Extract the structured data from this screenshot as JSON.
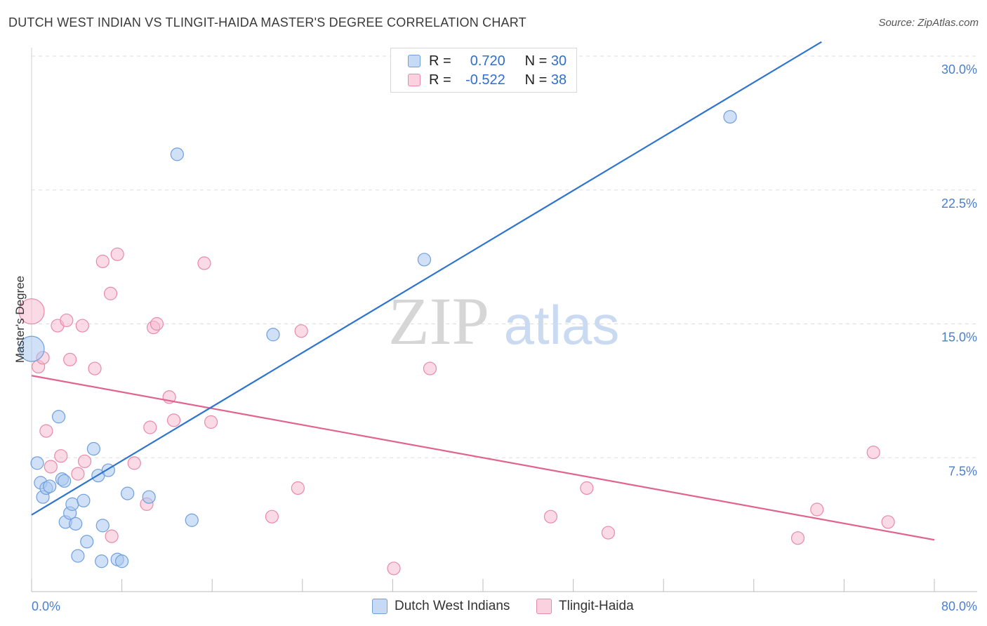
{
  "title": "DUTCH WEST INDIAN VS TLINGIT-HAIDA MASTER'S DEGREE CORRELATION CHART",
  "source": "Source: ZipAtlas.com",
  "watermark": {
    "part1": "ZIP",
    "part2": "atlas"
  },
  "colors": {
    "blue_fill": "#a9c8f0",
    "blue_stroke": "#6f9fdc",
    "blue_line": "#2e74d0",
    "pink_fill": "#f6bccd",
    "pink_stroke": "#e98aa8",
    "pink_line": "#e0648f",
    "grid": "#dddddd",
    "tick_text": "#4a7fcf"
  },
  "legend": {
    "rows": [
      {
        "r_label": "R =",
        "r_value": "0.720",
        "n_label": "N =",
        "n_value": "30"
      },
      {
        "r_label": "R =",
        "r_value": "-0.522",
        "n_label": "N =",
        "n_value": "38"
      }
    ]
  },
  "chart_data": {
    "type": "scatter",
    "title": "DUTCH WEST INDIAN VS TLINGIT-HAIDA MASTER'S DEGREE CORRELATION CHART",
    "xlabel": "",
    "ylabel": "Master's Degree",
    "xlim": [
      0,
      80
    ],
    "ylim": [
      0,
      30
    ],
    "x_tick_labels": [
      "0.0%",
      "80.0%"
    ],
    "y_ticks": [
      7.5,
      15.0,
      22.5,
      30.0
    ],
    "y_tick_labels": [
      "7.5%",
      "15.0%",
      "22.5%",
      "30.0%"
    ],
    "grid": true,
    "legend_position": "top-center",
    "series": [
      {
        "name": "Dutch West Indians",
        "color": "#a9c8f0",
        "r": "0.720",
        "n": "30",
        "points": [
          [
            0.0,
            13.6
          ],
          [
            0.5,
            7.2
          ],
          [
            0.8,
            6.1
          ],
          [
            1.0,
            5.3
          ],
          [
            1.3,
            5.8
          ],
          [
            1.6,
            5.9
          ],
          [
            2.4,
            9.8
          ],
          [
            2.7,
            6.3
          ],
          [
            2.9,
            6.2
          ],
          [
            3.0,
            3.9
          ],
          [
            3.4,
            4.4
          ],
          [
            3.6,
            4.9
          ],
          [
            3.9,
            3.8
          ],
          [
            4.1,
            2.0
          ],
          [
            4.6,
            5.1
          ],
          [
            4.9,
            2.8
          ],
          [
            5.5,
            8.0
          ],
          [
            5.9,
            6.5
          ],
          [
            6.2,
            1.7
          ],
          [
            6.3,
            3.7
          ],
          [
            6.8,
            6.8
          ],
          [
            7.6,
            1.8
          ],
          [
            8.0,
            1.7
          ],
          [
            8.5,
            5.5
          ],
          [
            10.4,
            5.3
          ],
          [
            12.9,
            24.5
          ],
          [
            14.2,
            4.0
          ],
          [
            21.4,
            14.4
          ],
          [
            34.8,
            18.6
          ],
          [
            61.9,
            26.6
          ]
        ],
        "trendline": {
          "x": [
            0,
            70
          ],
          "y": [
            4.3,
            30.8
          ]
        }
      },
      {
        "name": "Tlingit-Haida",
        "color": "#f6bccd",
        "r": "-0.522",
        "n": "38",
        "points": [
          [
            0.0,
            15.7
          ],
          [
            0.6,
            12.6
          ],
          [
            1.0,
            13.1
          ],
          [
            1.3,
            9.0
          ],
          [
            1.7,
            7.0
          ],
          [
            2.3,
            14.9
          ],
          [
            2.6,
            7.6
          ],
          [
            3.1,
            15.2
          ],
          [
            3.4,
            13.0
          ],
          [
            4.1,
            6.6
          ],
          [
            4.5,
            14.9
          ],
          [
            4.7,
            7.3
          ],
          [
            5.6,
            12.5
          ],
          [
            6.3,
            18.5
          ],
          [
            7.0,
            16.7
          ],
          [
            7.1,
            3.1
          ],
          [
            7.6,
            18.9
          ],
          [
            9.1,
            7.2
          ],
          [
            10.2,
            4.9
          ],
          [
            10.5,
            9.2
          ],
          [
            10.8,
            14.8
          ],
          [
            11.1,
            15.0
          ],
          [
            12.2,
            10.9
          ],
          [
            12.6,
            9.6
          ],
          [
            15.3,
            18.4
          ],
          [
            15.9,
            9.5
          ],
          [
            21.3,
            4.2
          ],
          [
            23.6,
            5.8
          ],
          [
            23.9,
            14.6
          ],
          [
            32.1,
            1.3
          ],
          [
            35.3,
            12.5
          ],
          [
            46.0,
            4.2
          ],
          [
            49.2,
            5.8
          ],
          [
            51.1,
            3.3
          ],
          [
            67.9,
            3.0
          ],
          [
            69.6,
            4.6
          ],
          [
            74.6,
            7.8
          ],
          [
            75.9,
            3.9
          ]
        ],
        "trendline": {
          "x": [
            0,
            80
          ],
          "y": [
            12.1,
            2.9
          ]
        }
      }
    ]
  },
  "bottom_legend": [
    {
      "label": "Dutch West Indians"
    },
    {
      "label": "Tlingit-Haida"
    }
  ]
}
